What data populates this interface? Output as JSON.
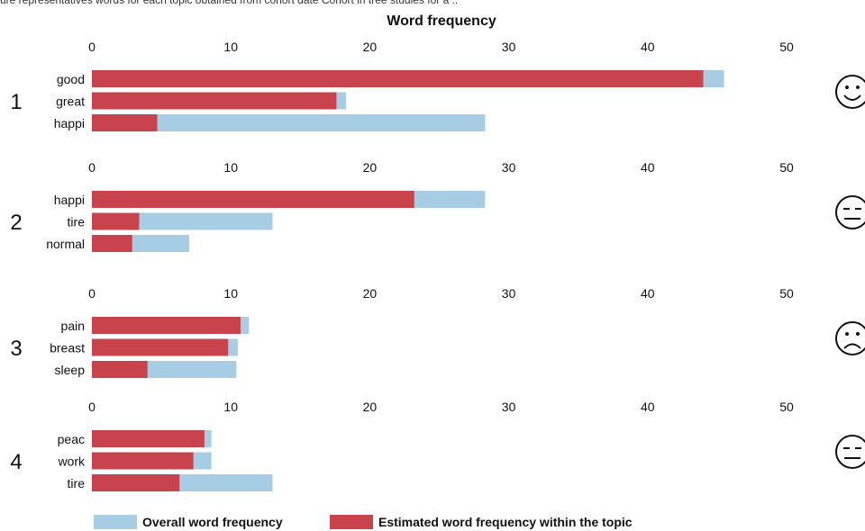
{
  "page": {
    "caption": "ure representatives words for each topic obtained from cohort date Cohort in tree studies for a .."
  },
  "colors": {
    "overall": "#a6cde3",
    "topic": "#c9434c"
  },
  "legend": {
    "overall_label": "Overall word frequency",
    "topic_label": "Estimated word frequency within the topic"
  },
  "chart_data": {
    "type": "bar",
    "title": "Word frequency",
    "xlim": [
      0,
      50
    ],
    "xticks": [
      0,
      10,
      20,
      30,
      40,
      50
    ],
    "orientation": "horizontal",
    "overlay": true,
    "topics": [
      {
        "label": "1",
        "face": "smile-icon",
        "categories": [
          "good",
          "great",
          "happi"
        ],
        "series": [
          {
            "name": "Overall word frequency",
            "values": [
              45.5,
              18.3,
              28.3
            ]
          },
          {
            "name": "Estimated word frequency within the topic",
            "values": [
              44.0,
              17.6,
              4.7
            ]
          }
        ]
      },
      {
        "label": "2",
        "face": "neutral-icon",
        "categories": [
          "happi",
          "tire",
          "normal"
        ],
        "series": [
          {
            "name": "Overall word frequency",
            "values": [
              28.3,
              13.0,
              7.0
            ]
          },
          {
            "name": "Estimated word frequency within the topic",
            "values": [
              23.2,
              3.4,
              2.9
            ]
          }
        ]
      },
      {
        "label": "3",
        "face": "sad-icon",
        "categories": [
          "pain",
          "breast",
          "sleep"
        ],
        "series": [
          {
            "name": "Overall word frequency",
            "values": [
              11.3,
              10.5,
              10.4
            ]
          },
          {
            "name": "Estimated word frequency within the topic",
            "values": [
              10.7,
              9.8,
              4.0
            ]
          }
        ]
      },
      {
        "label": "4",
        "face": "neutral-icon",
        "categories": [
          "peac",
          "work",
          "tire"
        ],
        "series": [
          {
            "name": "Overall word frequency",
            "values": [
              8.6,
              8.6,
              13.0
            ]
          },
          {
            "name": "Estimated word frequency within the topic",
            "values": [
              8.1,
              7.3,
              6.3
            ]
          }
        ]
      }
    ]
  }
}
